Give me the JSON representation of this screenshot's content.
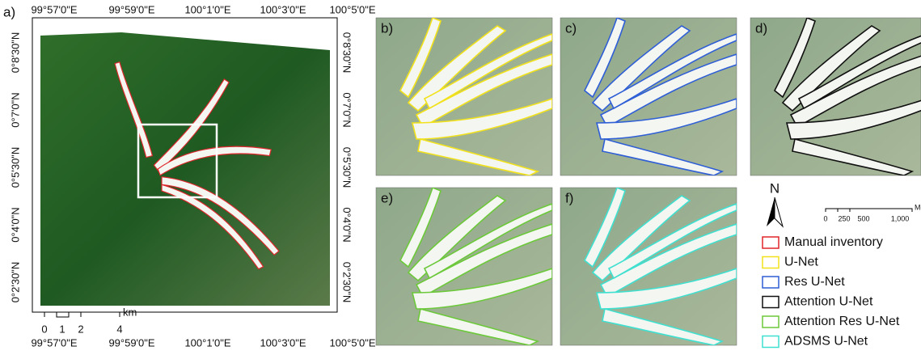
{
  "panel_a": {
    "label": "a)",
    "lon_labels": [
      "99°57'0\"E",
      "99°59'0\"E",
      "100°1'0\"E",
      "100°3'0\"E",
      "100°5'0\"E"
    ],
    "lat_labels": [
      "0°8'30\"N",
      "0°7'0\"N",
      "0°5'30\"N",
      "0°4'0\"N",
      "0°2'30\"N"
    ],
    "scale": {
      "ticks": [
        "0",
        "1",
        "2",
        "4"
      ],
      "unit": "km"
    }
  },
  "panels": [
    {
      "label": "b)"
    },
    {
      "label": "c)"
    },
    {
      "label": "d)"
    },
    {
      "label": "e)"
    },
    {
      "label": "f)"
    }
  ],
  "north": "N",
  "scale_small": {
    "ticks": [
      "0",
      "250",
      "500",
      "1,000"
    ],
    "unit": "Meters"
  },
  "legend": [
    {
      "name": "Manual inventory",
      "color": "#e0262a"
    },
    {
      "name": "U-Net",
      "color": "#f2e21b"
    },
    {
      "name": "Res U-Net",
      "color": "#2f5fd6"
    },
    {
      "name": "Attention U-Net",
      "color": "#111111"
    },
    {
      "name": "Attention Res U-Net",
      "color": "#6cc93a"
    },
    {
      "name": "ADSMS U-Net",
      "color": "#3fe0d0"
    }
  ]
}
